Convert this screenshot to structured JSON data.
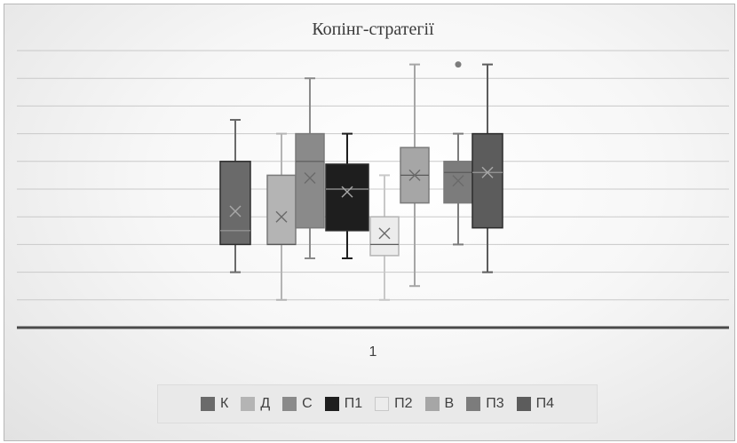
{
  "chart_data": {
    "type": "boxplot",
    "title": "Копінг-стратегії",
    "categories": [
      "1"
    ],
    "xlabel": "",
    "ylabel": "",
    "grid": true,
    "gridlines": 10,
    "legend_position": "bottom",
    "series": [
      {
        "name": "К",
        "color": "#6a6a6a",
        "min": 2.0,
        "q1": 3.0,
        "median": 3.5,
        "q3": 6.0,
        "max": 7.5,
        "mean": 4.2,
        "outliers": []
      },
      {
        "name": "Д",
        "color": "#b4b4b4",
        "min": 1.0,
        "q1": 3.0,
        "median": 3.0,
        "q3": 5.5,
        "max": 7.0,
        "mean": 4.0,
        "outliers": []
      },
      {
        "name": "С",
        "color": "#8a8a8a",
        "min": 2.5,
        "q1": 3.6,
        "median": 6.0,
        "q3": 7.0,
        "max": 9.0,
        "mean": 5.4,
        "outliers": []
      },
      {
        "name": "П1",
        "color": "#1e1e1e",
        "min": 2.5,
        "q1": 3.5,
        "median": 5.0,
        "q3": 5.9,
        "max": 7.0,
        "mean": 4.9,
        "outliers": []
      },
      {
        "name": "П2",
        "color": "#ececec",
        "min": 1.0,
        "q1": 2.6,
        "median": 3.0,
        "q3": 4.0,
        "max": 5.5,
        "mean": 3.4,
        "outliers": []
      },
      {
        "name": "В",
        "color": "#a6a6a6",
        "min": 1.5,
        "q1": 4.5,
        "median": 5.5,
        "q3": 6.5,
        "max": 9.5,
        "mean": 5.5,
        "outliers": []
      },
      {
        "name": "П3",
        "color": "#7c7c7c",
        "min": 3.0,
        "q1": 4.5,
        "median": 5.6,
        "q3": 6.0,
        "max": 7.0,
        "mean": 5.3,
        "outliers": [
          9.5
        ]
      },
      {
        "name": "П4",
        "color": "#5c5c5c",
        "min": 2.0,
        "q1": 3.6,
        "median": 5.6,
        "q3": 7.0,
        "max": 9.5,
        "mean": 5.6,
        "outliers": []
      }
    ]
  }
}
